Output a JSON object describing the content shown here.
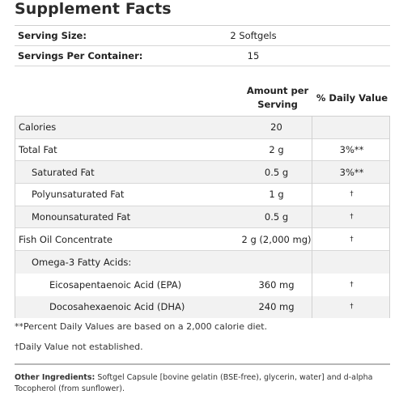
{
  "title": "Supplement Facts",
  "serving": [
    {
      "label": "Serving Size:",
      "value": "2 Softgels"
    },
    {
      "label": "Servings Per Container:",
      "value": "15"
    }
  ],
  "header": {
    "amount_line1": "Amount per",
    "amount_line2": "Serving",
    "daily_value": "% Daily Value"
  },
  "nutrients": [
    {
      "name": "Calories",
      "amount": "20",
      "dv": "",
      "indent": 0
    },
    {
      "name": "Total Fat",
      "amount": "2 g",
      "dv": "3%**",
      "indent": 0
    },
    {
      "name": "Saturated Fat",
      "amount": "0.5 g",
      "dv": "3%**",
      "indent": 1
    },
    {
      "name": "Polyunsaturated Fat",
      "amount": "1 g",
      "dv": "†",
      "indent": 1
    },
    {
      "name": "Monounsaturated Fat",
      "amount": "0.5 g",
      "dv": "†",
      "indent": 1
    },
    {
      "name": "Fish Oil Concentrate",
      "amount": "2 g (2,000 mg)",
      "dv": "†",
      "indent": 0
    },
    {
      "name": "Omega-3 Fatty Acids:",
      "amount": "",
      "dv": "",
      "indent": 1
    },
    {
      "name": "Eicosapentaenoic Acid (EPA)",
      "amount": "360 mg",
      "dv": "†",
      "indent": 2
    },
    {
      "name": "Docosahexaenoic Acid (DHA)",
      "amount": "240 mg",
      "dv": "†",
      "indent": 2
    }
  ],
  "footnotes": {
    "percent_note": "**Percent Daily Values are based on a 2,000 calorie diet.",
    "dagger_note": "†Daily Value not established."
  },
  "other_ingredients": {
    "label": "Other Ingredients:",
    "text": "Softgel Capsule [bovine gelatin (BSE-free), glycerin, water] and d-alpha Tocopherol (from sunflower)."
  }
}
